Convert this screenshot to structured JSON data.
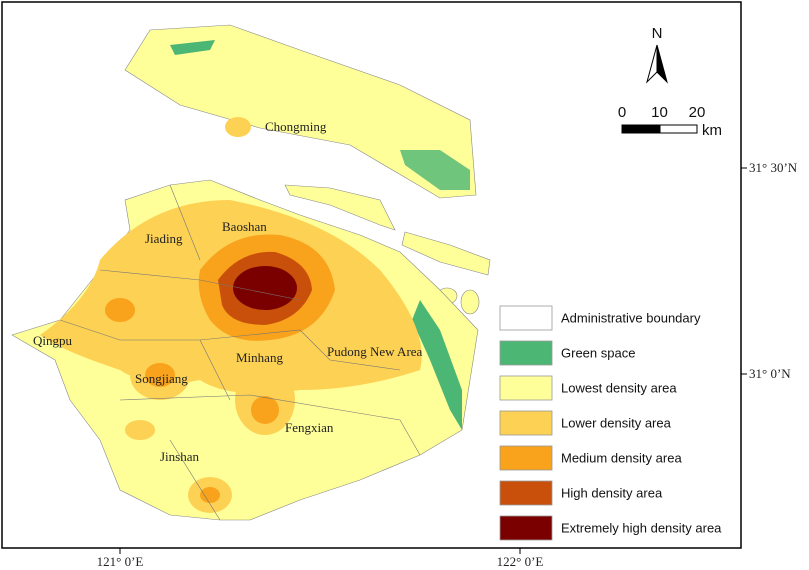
{
  "map": {
    "districts": [
      "Chongming",
      "Baoshan",
      "Jiading",
      "Qingpu",
      "Minhang",
      "Pudong New Area",
      "Songjiang",
      "Fengxian",
      "Jinshan"
    ],
    "legend": [
      {
        "label": "Administrative boundary",
        "color": "#ffffff"
      },
      {
        "label": "Green space",
        "color": "#4cb774"
      },
      {
        "label": "Lowest density area",
        "color": "#ffff99"
      },
      {
        "label": "Lower density area",
        "color": "#fdd153"
      },
      {
        "label": "Medium density area",
        "color": "#f9a21c"
      },
      {
        "label": "High density area",
        "color": "#c8500a"
      },
      {
        "label": "Extremely high density area",
        "color": "#7a0000"
      }
    ],
    "north": "N",
    "scale": {
      "ticks": [
        0,
        10,
        20
      ],
      "unit": "km"
    },
    "lat_labels": [
      "31° 30’N",
      "31° 0’N"
    ],
    "lon_labels": [
      "121° 0’E",
      "122° 0’E"
    ]
  }
}
